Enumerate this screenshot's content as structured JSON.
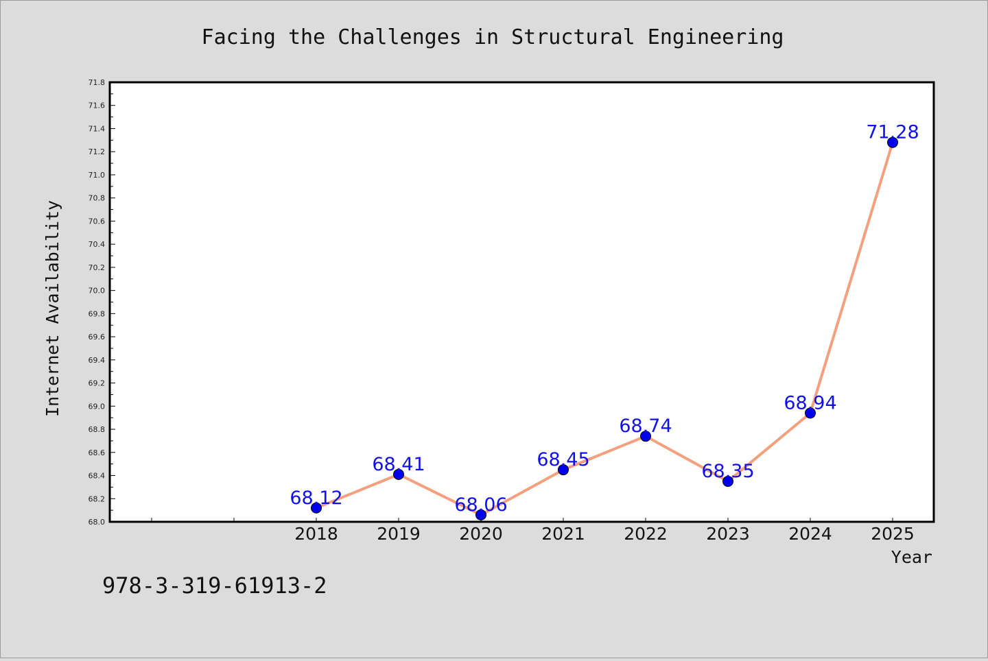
{
  "chart_data": {
    "type": "line",
    "title": "Facing the Challenges in Structural Engineering",
    "xlabel": "Year",
    "ylabel": "Internet Availability",
    "x": [
      "2018",
      "2019",
      "2020",
      "2021",
      "2022",
      "2023",
      "2024",
      "2025"
    ],
    "series": [
      {
        "values": [
          68.12,
          68.41,
          68.06,
          68.45,
          68.74,
          68.35,
          68.94,
          71.28
        ],
        "labels": [
          "68.12",
          "68.41",
          "68.06",
          "68.45",
          "68.74",
          "68.35",
          "68.94",
          "71.28"
        ]
      }
    ],
    "ylim": [
      68.0,
      71.8
    ],
    "yticks": [
      "68.0",
      "68.2",
      "68.4",
      "68.6",
      "68.8",
      "69.0",
      "69.2",
      "69.4",
      "69.6",
      "69.8",
      "70.0",
      "70.2",
      "70.4",
      "70.6",
      "70.8",
      "71.0",
      "71.2",
      "71.4",
      "71.6",
      "71.8"
    ],
    "grid": false,
    "line_color": "#f4a07e",
    "marker_color": "#0000ee",
    "label_color": "#1010ee",
    "plot_background": "#ffffff",
    "figure_background": "#dcdcdc"
  },
  "footer_text": "978-3-319-61913-2"
}
